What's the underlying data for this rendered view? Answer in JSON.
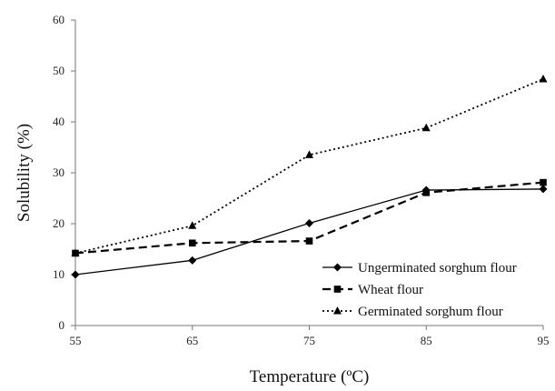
{
  "chart_data": {
    "type": "line",
    "title": "",
    "xlabel": "Temperature (ºC)",
    "ylabel": "Solubility (%)",
    "x": [
      55,
      65,
      75,
      85,
      95
    ],
    "xlim": [
      55,
      95
    ],
    "ylim": [
      0,
      60
    ],
    "xticks": [
      "55",
      "65",
      "75",
      "85",
      "95"
    ],
    "yticks": [
      "0",
      "10",
      "20",
      "30",
      "40",
      "50",
      "60"
    ],
    "grid": false,
    "legend_position": "bottom-right",
    "series": [
      {
        "name": "Ungerminated sorghum flour",
        "values": [
          10.0,
          12.8,
          20.1,
          26.6,
          26.8
        ],
        "marker": "diamond",
        "line": "solid",
        "color": "#000000"
      },
      {
        "name": "Wheat flour",
        "values": [
          14.2,
          16.2,
          16.6,
          26.1,
          28.1
        ],
        "marker": "square",
        "line": "dashed",
        "color": "#000000"
      },
      {
        "name": "Germinated sorghum flour",
        "values": [
          14.2,
          19.6,
          33.5,
          38.8,
          48.4
        ],
        "marker": "triangle",
        "line": "dotted",
        "color": "#000000"
      }
    ]
  }
}
